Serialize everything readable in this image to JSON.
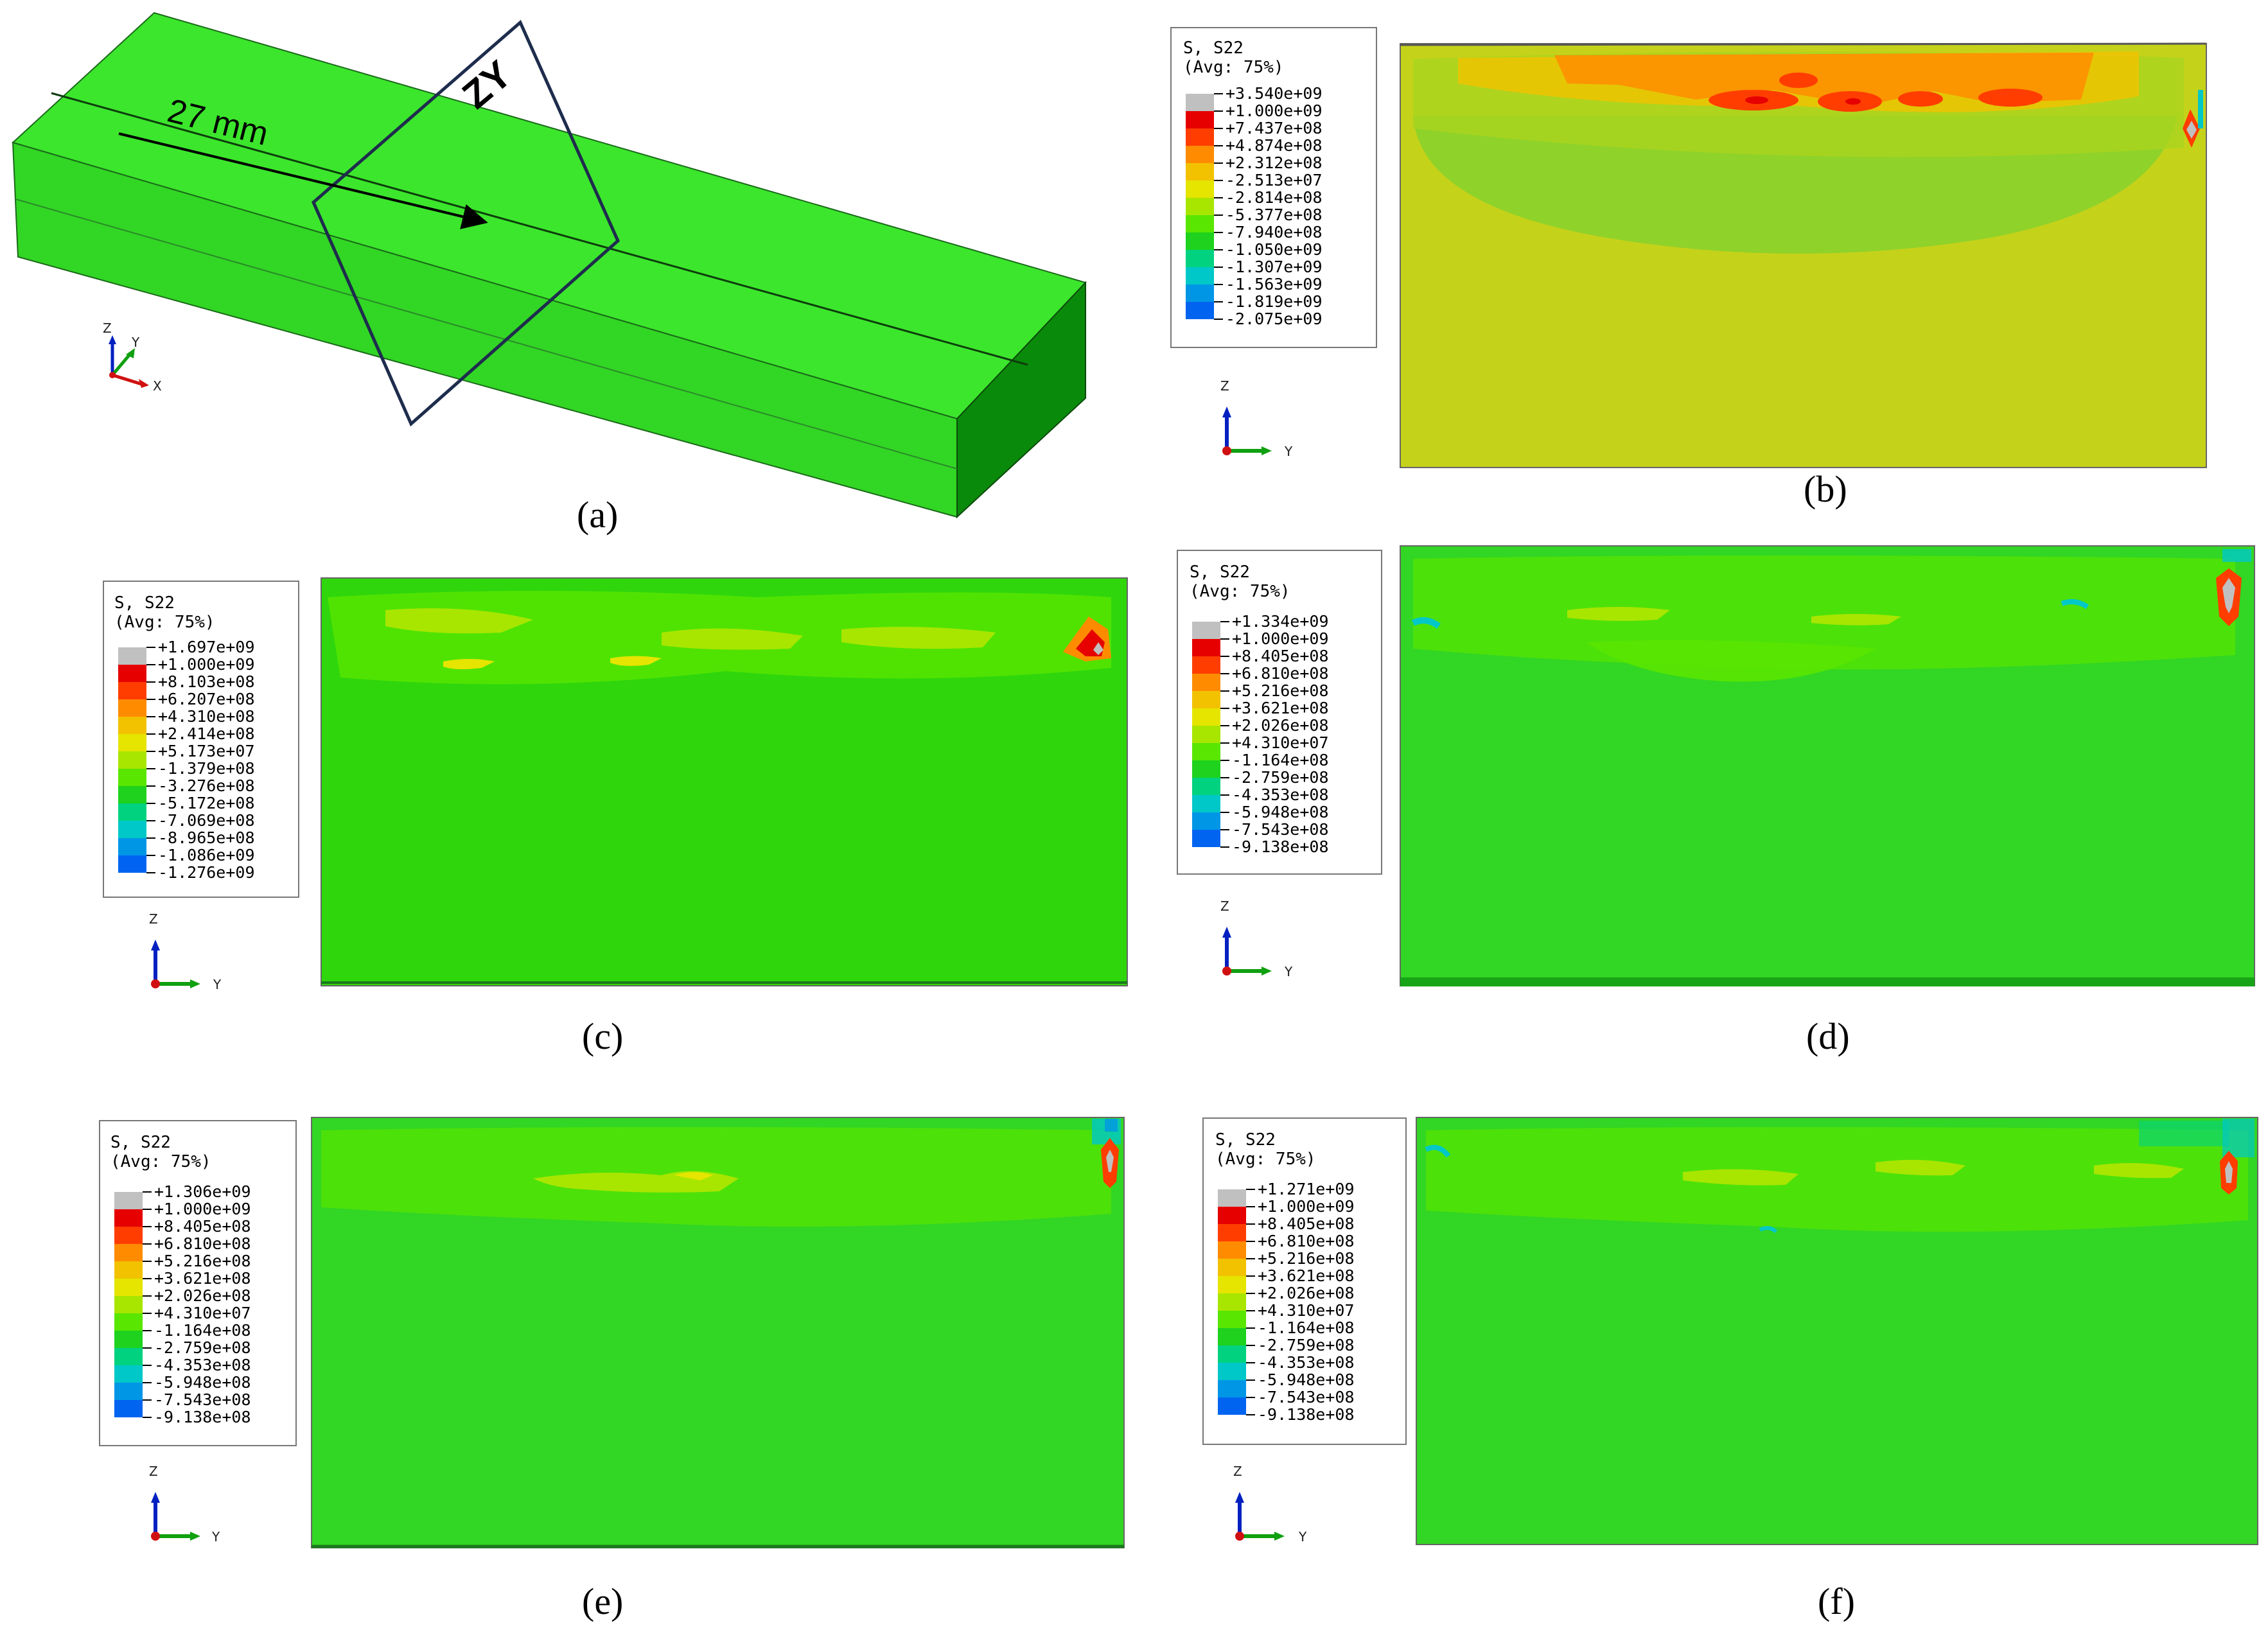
{
  "figure": {
    "panel_a": {
      "sublabel": "(a)",
      "dimension_label": "27 mm",
      "plane_label": "ZY",
      "triad": {
        "z": "Z",
        "y": "Y",
        "x": "X"
      }
    },
    "contour_panels": [
      {
        "sublabel": "(b)",
        "legend_title_1": "S, S22",
        "legend_title_2": "(Avg: 75%)",
        "values": [
          "+3.540e+09",
          "+1.000e+09",
          "+7.437e+08",
          "+4.874e+08",
          "+2.312e+08",
          "-2.513e+07",
          "-2.814e+08",
          "-5.377e+08",
          "-7.940e+08",
          "-1.050e+09",
          "-1.307e+09",
          "-1.563e+09",
          "-1.819e+09",
          "-2.075e+09"
        ],
        "triad": {
          "z": "Z",
          "y": "Y"
        }
      },
      {
        "sublabel": "(c)",
        "legend_title_1": "S, S22",
        "legend_title_2": "(Avg: 75%)",
        "values": [
          "+1.697e+09",
          "+1.000e+09",
          "+8.103e+08",
          "+6.207e+08",
          "+4.310e+08",
          "+2.414e+08",
          "+5.173e+07",
          "-1.379e+08",
          "-3.276e+08",
          "-5.172e+08",
          "-7.069e+08",
          "-8.965e+08",
          "-1.086e+09",
          "-1.276e+09"
        ],
        "triad": {
          "z": "Z",
          "y": "Y"
        }
      },
      {
        "sublabel": "(d)",
        "legend_title_1": "S, S22",
        "legend_title_2": "(Avg: 75%)",
        "values": [
          "+1.334e+09",
          "+1.000e+09",
          "+8.405e+08",
          "+6.810e+08",
          "+5.216e+08",
          "+3.621e+08",
          "+2.026e+08",
          "+4.310e+07",
          "-1.164e+08",
          "-2.759e+08",
          "-4.353e+08",
          "-5.948e+08",
          "-7.543e+08",
          "-9.138e+08"
        ],
        "triad": {
          "z": "Z",
          "y": "Y"
        }
      },
      {
        "sublabel": "(e)",
        "legend_title_1": "S, S22",
        "legend_title_2": "(Avg: 75%)",
        "values": [
          "+1.306e+09",
          "+1.000e+09",
          "+8.405e+08",
          "+6.810e+08",
          "+5.216e+08",
          "+3.621e+08",
          "+2.026e+08",
          "+4.310e+07",
          "-1.164e+08",
          "-2.759e+08",
          "-4.353e+08",
          "-5.948e+08",
          "-7.543e+08",
          "-9.138e+08"
        ],
        "triad": {
          "z": "Z",
          "y": "Y"
        }
      },
      {
        "sublabel": "(f)",
        "legend_title_1": "S, S22",
        "legend_title_2": "(Avg: 75%)",
        "values": [
          "+1.271e+09",
          "+1.000e+09",
          "+8.405e+08",
          "+6.810e+08",
          "+5.216e+08",
          "+3.621e+08",
          "+2.026e+08",
          "+4.310e+07",
          "-1.164e+08",
          "-2.759e+08",
          "-4.353e+08",
          "-5.948e+08",
          "-7.543e+08",
          "-9.138e+08"
        ],
        "triad": {
          "z": "Z",
          "y": "Y"
        }
      }
    ],
    "colormap": [
      "#c0c0c0",
      "#e60000",
      "#ff3d00",
      "#ff8c00",
      "#f2c200",
      "#e5e500",
      "#a8e600",
      "#59e600",
      "#1ed21e",
      "#00d280",
      "#00c8c8",
      "#0096e6",
      "#0064f0",
      "#0000ff"
    ]
  }
}
